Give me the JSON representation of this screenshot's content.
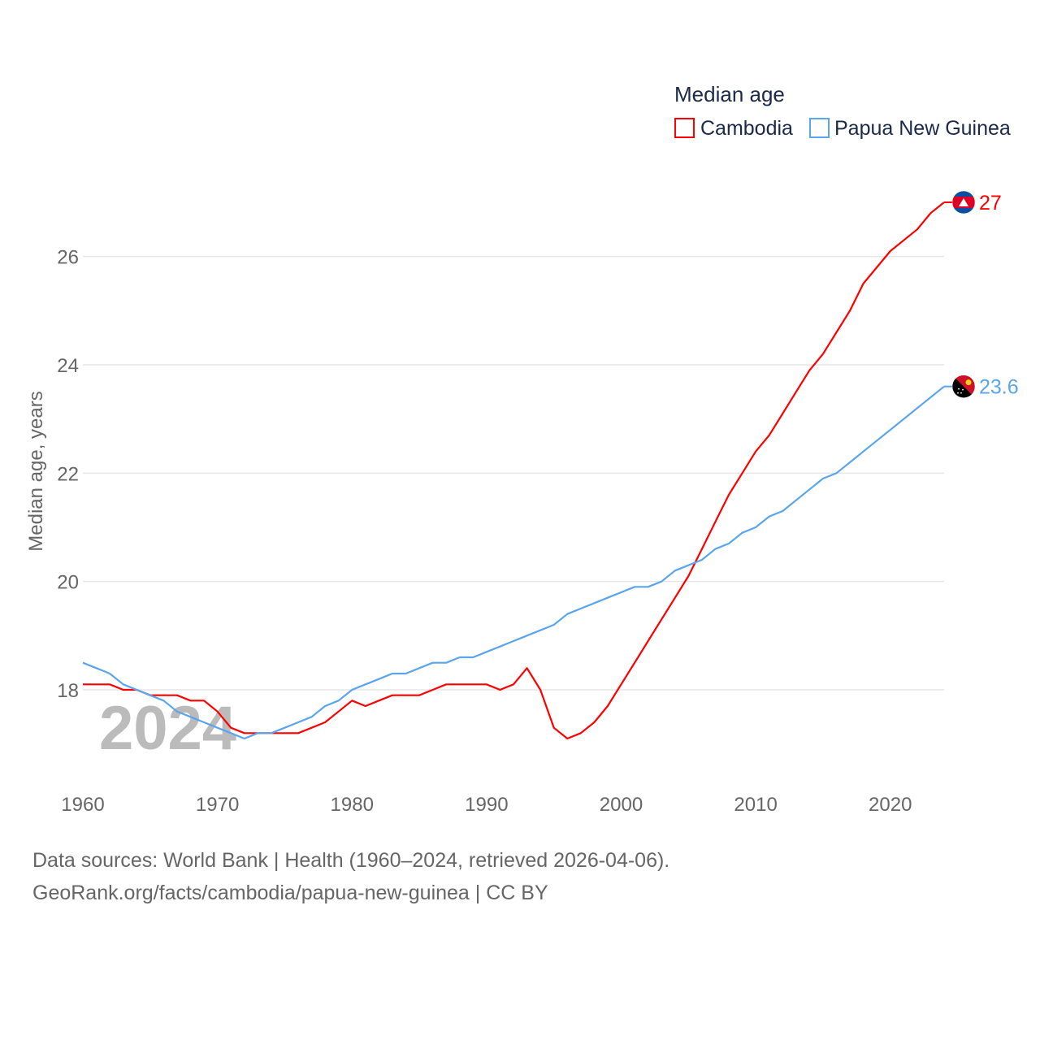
{
  "chart_data": {
    "type": "line",
    "legend_title": "Median age",
    "legend_position": "top-right",
    "ylabel": "Median age, years",
    "xlabel": "",
    "year_watermark": "2024",
    "xlim": [
      1960,
      2024
    ],
    "ylim": [
      16.5,
      27.5
    ],
    "grid": true,
    "x_ticks": [
      "1960",
      "1970",
      "1980",
      "1990",
      "2000",
      "2010",
      "2020"
    ],
    "y_ticks": [
      "18",
      "20",
      "22",
      "24",
      "26"
    ],
    "x": [
      1960,
      1961,
      1962,
      1963,
      1964,
      1965,
      1966,
      1967,
      1968,
      1969,
      1970,
      1971,
      1972,
      1973,
      1974,
      1975,
      1976,
      1977,
      1978,
      1979,
      1980,
      1981,
      1982,
      1983,
      1984,
      1985,
      1986,
      1987,
      1988,
      1989,
      1990,
      1991,
      1992,
      1993,
      1994,
      1995,
      1996,
      1997,
      1998,
      1999,
      2000,
      2001,
      2002,
      2003,
      2004,
      2005,
      2006,
      2007,
      2008,
      2009,
      2010,
      2011,
      2012,
      2013,
      2014,
      2015,
      2016,
      2017,
      2018,
      2019,
      2020,
      2021,
      2022,
      2023,
      2024
    ],
    "series": [
      {
        "name": "Cambodia",
        "color": "#ff0000",
        "end_label": "27",
        "flag": "cambodia-flag",
        "values": [
          18.1,
          18.1,
          18.1,
          18.0,
          18.0,
          17.9,
          17.9,
          17.9,
          17.8,
          17.8,
          17.6,
          17.3,
          17.2,
          17.2,
          17.2,
          17.2,
          17.2,
          17.3,
          17.4,
          17.6,
          17.8,
          17.7,
          17.8,
          17.9,
          17.9,
          17.9,
          18.0,
          18.1,
          18.1,
          18.1,
          18.1,
          18.0,
          18.1,
          18.4,
          18.0,
          17.3,
          17.1,
          17.2,
          17.4,
          17.7,
          18.1,
          18.5,
          18.9,
          19.3,
          19.7,
          20.1,
          20.6,
          21.1,
          21.6,
          22.0,
          22.4,
          22.7,
          23.1,
          23.5,
          23.9,
          24.2,
          24.6,
          25.0,
          25.5,
          25.8,
          26.1,
          26.3,
          26.5,
          26.8,
          27.0
        ]
      },
      {
        "name": "Papua New Guinea",
        "color": "#5aa5ec",
        "end_label": "23.6",
        "flag": "papua-new-guinea-flag",
        "values": [
          18.5,
          18.4,
          18.3,
          18.1,
          18.0,
          17.9,
          17.8,
          17.6,
          17.5,
          17.4,
          17.3,
          17.2,
          17.1,
          17.2,
          17.2,
          17.3,
          17.4,
          17.5,
          17.7,
          17.8,
          18.0,
          18.1,
          18.2,
          18.3,
          18.3,
          18.4,
          18.5,
          18.5,
          18.6,
          18.6,
          18.7,
          18.8,
          18.9,
          19.0,
          19.1,
          19.2,
          19.4,
          19.5,
          19.6,
          19.7,
          19.8,
          19.9,
          19.9,
          20.0,
          20.2,
          20.3,
          20.4,
          20.6,
          20.7,
          20.9,
          21.0,
          21.2,
          21.3,
          21.5,
          21.7,
          21.9,
          22.0,
          22.2,
          22.4,
          22.6,
          22.8,
          23.0,
          23.2,
          23.4,
          23.6
        ]
      }
    ]
  },
  "footer": {
    "line1": "Data sources: World Bank | Health (1960–2024, retrieved 2026-04-06).",
    "line2": "GeoRank.org/facts/cambodia/papua-new-guinea | CC BY"
  }
}
